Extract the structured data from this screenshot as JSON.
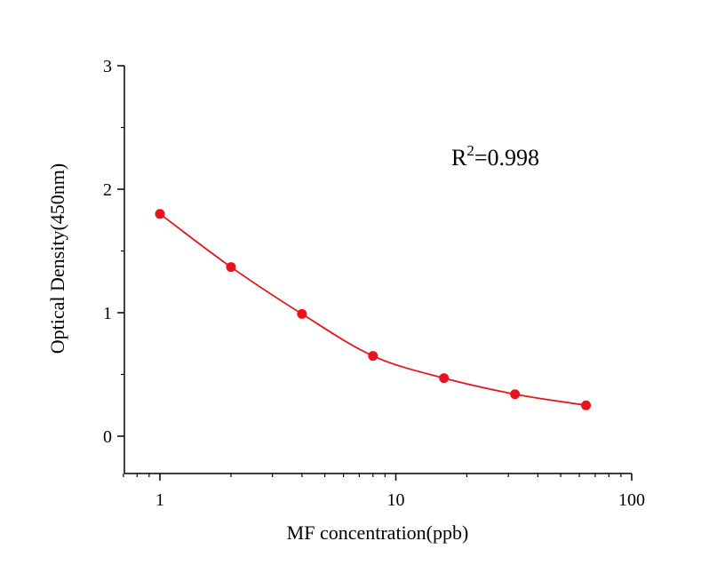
{
  "chart_data": {
    "type": "scatter",
    "title": "",
    "xlabel": "MF concentration(ppb)",
    "ylabel": "Optical Density(450nm)",
    "x_scale": "log",
    "xlim": [
      0.7,
      100
    ],
    "ylim": [
      -0.3,
      3
    ],
    "x_ticks": [
      1,
      10,
      100
    ],
    "x_tick_labels": [
      "1",
      "10",
      "100"
    ],
    "y_ticks": [
      0,
      1,
      2,
      3
    ],
    "y_tick_labels": [
      "0",
      "1",
      "2",
      "3"
    ],
    "grid": false,
    "legend": "none",
    "series": [
      {
        "x": [
          1,
          2,
          4,
          8,
          16,
          32,
          64
        ],
        "y": [
          1.8,
          1.37,
          0.99,
          0.65,
          0.47,
          0.34,
          0.25
        ],
        "color": "#e8141c",
        "marker": "circle",
        "fit_line": true
      }
    ],
    "annotation": {
      "r_prefix": "R",
      "r_superscript": "2",
      "r_value": "=0.998"
    }
  }
}
